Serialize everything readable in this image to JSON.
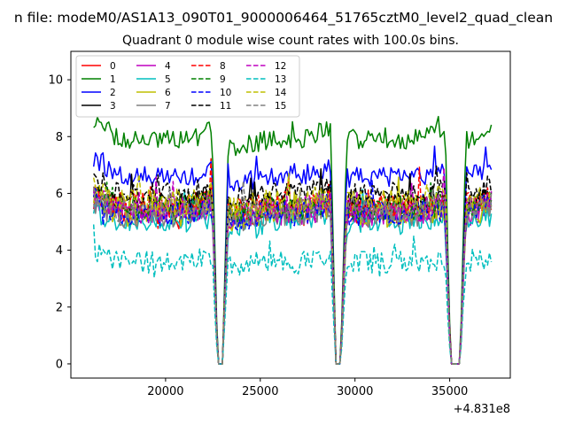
{
  "chart_data": {
    "type": "line",
    "suptitle": "n file: modeM0/AS1A13_090T01_9000006464_51765cztM0_level2_quad_clean",
    "title": "Quadrant 0 module wise count rates with 100.0s bins.",
    "xlabel": "",
    "ylabel": "",
    "x_offset_label": "+4.831e8",
    "xlim": [
      15000,
      38200
    ],
    "ylim": [
      -0.5,
      11.0
    ],
    "x_ticks": [
      20000,
      25000,
      30000,
      35000
    ],
    "x_tick_labels": [
      "20000",
      "25000",
      "30000",
      "35000"
    ],
    "y_ticks": [
      0,
      2,
      4,
      6,
      8,
      10
    ],
    "y_tick_labels": [
      "0",
      "2",
      "4",
      "6",
      "8",
      "10"
    ],
    "x_start": 16200,
    "x_end": 37200,
    "bin_seconds": 100,
    "gaps": [
      [
        22750,
        23000
      ],
      [
        29000,
        29250
      ],
      [
        35050,
        35550
      ]
    ],
    "legend_position": "upper-left",
    "legend_columns": 4,
    "series": [
      {
        "name": "0",
        "color": "#ff0000",
        "dash": "solid",
        "level": 5.4,
        "noise": 0.45
      },
      {
        "name": "1",
        "color": "#008000",
        "dash": "solid",
        "level": 7.9,
        "noise": 0.35
      },
      {
        "name": "2",
        "color": "#0000ff",
        "dash": "solid",
        "level": 6.6,
        "noise": 0.35
      },
      {
        "name": "3",
        "color": "#000000",
        "dash": "solid",
        "level": 5.6,
        "noise": 0.4
      },
      {
        "name": "4",
        "color": "#bf00bf",
        "dash": "solid",
        "level": 5.3,
        "noise": 0.5
      },
      {
        "name": "5",
        "color": "#00bfbf",
        "dash": "solid",
        "level": 5.0,
        "noise": 0.45
      },
      {
        "name": "6",
        "color": "#bfbf00",
        "dash": "solid",
        "level": 5.3,
        "noise": 0.5
      },
      {
        "name": "7",
        "color": "#808080",
        "dash": "solid",
        "level": 5.2,
        "noise": 0.4
      },
      {
        "name": "8",
        "color": "#ff0000",
        "dash": "dashed",
        "level": 5.6,
        "noise": 0.45
      },
      {
        "name": "9",
        "color": "#008000",
        "dash": "dashed",
        "level": 5.5,
        "noise": 0.45
      },
      {
        "name": "10",
        "color": "#0000ff",
        "dash": "dashed",
        "level": 5.3,
        "noise": 0.45
      },
      {
        "name": "11",
        "color": "#000000",
        "dash": "dashed",
        "level": 6.0,
        "noise": 0.4
      },
      {
        "name": "12",
        "color": "#bf00bf",
        "dash": "dashed",
        "level": 5.4,
        "noise": 0.45
      },
      {
        "name": "13",
        "color": "#00bfbf",
        "dash": "dashed",
        "level": 3.6,
        "noise": 0.4
      },
      {
        "name": "14",
        "color": "#bfbf00",
        "dash": "dashed",
        "level": 5.7,
        "noise": 0.45
      },
      {
        "name": "15",
        "color": "#808080",
        "dash": "dashed",
        "level": 5.4,
        "noise": 0.4
      }
    ]
  }
}
